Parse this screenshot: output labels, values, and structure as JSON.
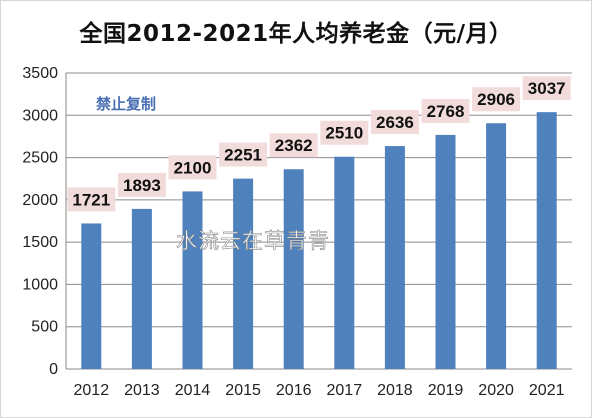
{
  "chart_data": {
    "type": "bar",
    "title": "全国2012-2021年人均养老金（元/月）",
    "categories": [
      "2012",
      "2013",
      "2014",
      "2015",
      "2016",
      "2017",
      "2018",
      "2019",
      "2020",
      "2021"
    ],
    "values": [
      1721,
      1893,
      2100,
      2251,
      2362,
      2510,
      2636,
      2768,
      2906,
      3037
    ],
    "ylim": [
      0,
      3500
    ],
    "yticks": [
      0,
      500,
      1000,
      1500,
      2000,
      2500,
      3000,
      3500
    ],
    "grid": true,
    "bar_color": "#4f81bd",
    "label_bg_color": "#f2dcdb",
    "watermarks": [
      "禁止复制",
      "水流云在草青青"
    ]
  }
}
